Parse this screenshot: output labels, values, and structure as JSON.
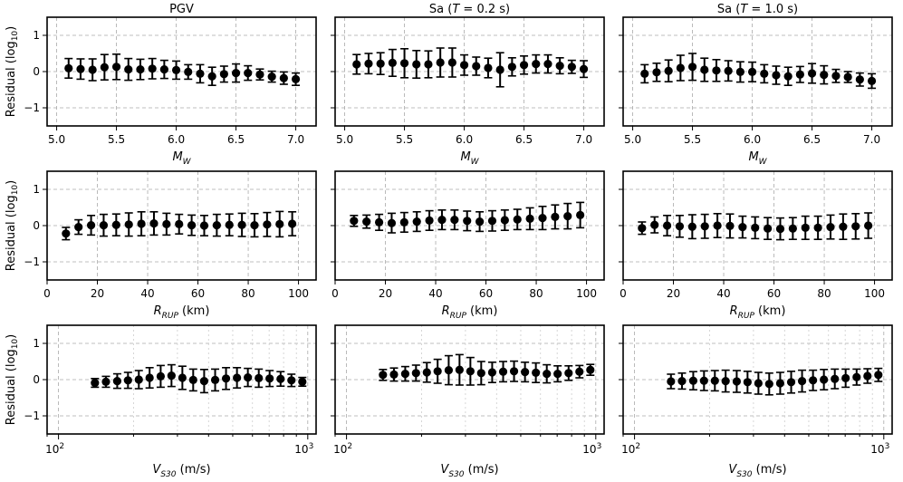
{
  "chart_data": {
    "type": "scatter",
    "grid": true,
    "column_titles": [
      "PGV",
      "Sa (T = 0.2 s)",
      "Sa (T = 1.0 s)"
    ],
    "ylabel": "Residual (log10)",
    "ylim": [
      -1.5,
      1.5
    ],
    "yticks": [
      -1,
      0,
      1
    ],
    "rows": [
      {
        "variable": "MW",
        "xlabel": "MW",
        "xscale": "linear",
        "xlim": [
          4.92,
          7.17
        ],
        "xticks": [
          5.0,
          5.5,
          6.0,
          6.5,
          7.0
        ],
        "xtick_labels": [
          "5.0",
          "5.5",
          "6.0",
          "6.5",
          "7.0"
        ],
        "x": [
          5.1,
          5.2,
          5.3,
          5.4,
          5.5,
          5.6,
          5.7,
          5.8,
          5.9,
          6.0,
          6.1,
          6.2,
          6.3,
          6.4,
          6.5,
          6.6,
          6.7,
          6.8,
          6.9,
          7.0
        ],
        "series": [
          {
            "name": "PGV",
            "values": [
              0.09,
              0.07,
              0.05,
              0.12,
              0.13,
              0.06,
              0.06,
              0.08,
              0.06,
              0.04,
              -0.01,
              -0.06,
              -0.13,
              -0.07,
              -0.04,
              -0.04,
              -0.08,
              -0.14,
              -0.18,
              -0.21
            ],
            "errors": [
              0.27,
              0.28,
              0.3,
              0.35,
              0.35,
              0.3,
              0.28,
              0.28,
              0.25,
              0.25,
              0.2,
              0.25,
              0.25,
              0.22,
              0.25,
              0.2,
              0.15,
              0.15,
              0.17,
              0.17
            ]
          },
          {
            "name": "Sa (T = 0.2 s)",
            "values": [
              0.2,
              0.22,
              0.22,
              0.24,
              0.23,
              0.2,
              0.2,
              0.25,
              0.25,
              0.18,
              0.15,
              0.1,
              0.05,
              0.13,
              0.18,
              0.21,
              0.21,
              0.16,
              0.13,
              0.07
            ],
            "errors": [
              0.27,
              0.28,
              0.3,
              0.37,
              0.4,
              0.38,
              0.37,
              0.4,
              0.4,
              0.28,
              0.25,
              0.27,
              0.47,
              0.25,
              0.25,
              0.25,
              0.25,
              0.22,
              0.18,
              0.23
            ]
          },
          {
            "name": "Sa (T = 1.0 s)",
            "values": [
              -0.06,
              -0.02,
              0.02,
              0.1,
              0.13,
              0.05,
              0.03,
              0.02,
              -0.01,
              -0.01,
              -0.06,
              -0.1,
              -0.13,
              -0.08,
              -0.05,
              -0.09,
              -0.12,
              -0.15,
              -0.22,
              -0.26
            ],
            "errors": [
              0.25,
              0.25,
              0.3,
              0.35,
              0.37,
              0.32,
              0.3,
              0.28,
              0.28,
              0.27,
              0.25,
              0.25,
              0.25,
              0.22,
              0.27,
              0.25,
              0.18,
              0.15,
              0.18,
              0.2
            ]
          }
        ]
      },
      {
        "variable": "RRUP",
        "xlabel": "RRUP (km)",
        "xscale": "linear",
        "xlim": [
          0,
          107
        ],
        "xticks": [
          0,
          20,
          40,
          60,
          80,
          100
        ],
        "xtick_labels": [
          "0",
          "20",
          "40",
          "60",
          "80",
          "100"
        ],
        "x": [
          7.5,
          12.5,
          17.5,
          22.5,
          27.5,
          32.5,
          37.5,
          42.5,
          47.5,
          52.5,
          57.5,
          62.5,
          67.5,
          72.5,
          77.5,
          82.5,
          87.5,
          92.5,
          97.5
        ],
        "series": [
          {
            "name": "PGV",
            "values": [
              -0.22,
              -0.04,
              0.01,
              0.01,
              0.02,
              0.03,
              0.05,
              0.06,
              0.04,
              0.04,
              0.01,
              0.0,
              0.01,
              0.02,
              0.02,
              0.01,
              0.03,
              0.04,
              0.05
            ],
            "errors": [
              0.17,
              0.2,
              0.27,
              0.3,
              0.3,
              0.32,
              0.33,
              0.32,
              0.3,
              0.27,
              0.28,
              0.28,
              0.3,
              0.3,
              0.32,
              0.32,
              0.33,
              0.35,
              0.33
            ]
          },
          {
            "name": "Sa (T = 0.2 s)",
            "values": [
              0.13,
              0.11,
              0.09,
              0.07,
              0.09,
              0.11,
              0.14,
              0.16,
              0.16,
              0.13,
              0.11,
              0.13,
              0.15,
              0.17,
              0.19,
              0.21,
              0.24,
              0.26,
              0.29
            ],
            "errors": [
              0.15,
              0.18,
              0.22,
              0.27,
              0.27,
              0.27,
              0.27,
              0.27,
              0.27,
              0.27,
              0.27,
              0.28,
              0.28,
              0.28,
              0.3,
              0.32,
              0.33,
              0.35,
              0.35
            ]
          },
          {
            "name": "Sa (T = 1.0 s)",
            "values": [
              -0.07,
              0.02,
              0.0,
              -0.02,
              -0.03,
              -0.02,
              0.0,
              -0.01,
              -0.04,
              -0.06,
              -0.08,
              -0.09,
              -0.08,
              -0.06,
              -0.06,
              -0.04,
              -0.03,
              -0.02,
              0.0
            ],
            "errors": [
              0.17,
              0.22,
              0.28,
              0.3,
              0.33,
              0.33,
              0.33,
              0.33,
              0.3,
              0.3,
              0.3,
              0.3,
              0.3,
              0.32,
              0.32,
              0.33,
              0.35,
              0.35,
              0.35
            ]
          }
        ]
      },
      {
        "variable": "VS30",
        "xlabel": "VS30 (m/s)",
        "xscale": "log",
        "xlim": [
          90,
          1080
        ],
        "xticks": [
          100,
          1000
        ],
        "xtick_labels": [
          "10^2",
          "10^3"
        ],
        "x": [
          140,
          155,
          172,
          190,
          210,
          232,
          257,
          284,
          314,
          347,
          384,
          425,
          470,
          520,
          575,
          636,
          703,
          778,
          860,
          951
        ],
        "series": [
          {
            "name": "PGV",
            "values": [
              -0.09,
              -0.06,
              -0.04,
              -0.02,
              0.0,
              0.05,
              0.09,
              0.11,
              0.05,
              -0.01,
              -0.04,
              -0.01,
              0.03,
              0.05,
              0.06,
              0.04,
              0.03,
              0.02,
              -0.02,
              -0.06
            ],
            "errors": [
              0.12,
              0.15,
              0.2,
              0.22,
              0.25,
              0.28,
              0.3,
              0.3,
              0.32,
              0.3,
              0.32,
              0.3,
              0.3,
              0.28,
              0.25,
              0.25,
              0.22,
              0.2,
              0.17,
              0.12
            ]
          },
          {
            "name": "Sa (T = 0.2 s)",
            "values": [
              0.13,
              0.14,
              0.16,
              0.18,
              0.2,
              0.23,
              0.26,
              0.27,
              0.23,
              0.18,
              0.2,
              0.22,
              0.23,
              0.21,
              0.19,
              0.16,
              0.16,
              0.18,
              0.22,
              0.27
            ],
            "errors": [
              0.15,
              0.18,
              0.2,
              0.22,
              0.27,
              0.33,
              0.4,
              0.42,
              0.38,
              0.32,
              0.28,
              0.28,
              0.28,
              0.27,
              0.27,
              0.25,
              0.22,
              0.2,
              0.17,
              0.15
            ]
          },
          {
            "name": "Sa (T = 1.0 s)",
            "values": [
              -0.05,
              -0.04,
              -0.03,
              -0.03,
              -0.03,
              -0.04,
              -0.05,
              -0.07,
              -0.1,
              -0.12,
              -0.1,
              -0.07,
              -0.04,
              -0.02,
              0.0,
              0.02,
              0.04,
              0.07,
              0.1,
              0.13
            ],
            "errors": [
              0.2,
              0.22,
              0.25,
              0.27,
              0.28,
              0.3,
              0.3,
              0.3,
              0.3,
              0.3,
              0.3,
              0.3,
              0.3,
              0.28,
              0.28,
              0.27,
              0.25,
              0.22,
              0.2,
              0.18
            ]
          }
        ]
      }
    ]
  }
}
